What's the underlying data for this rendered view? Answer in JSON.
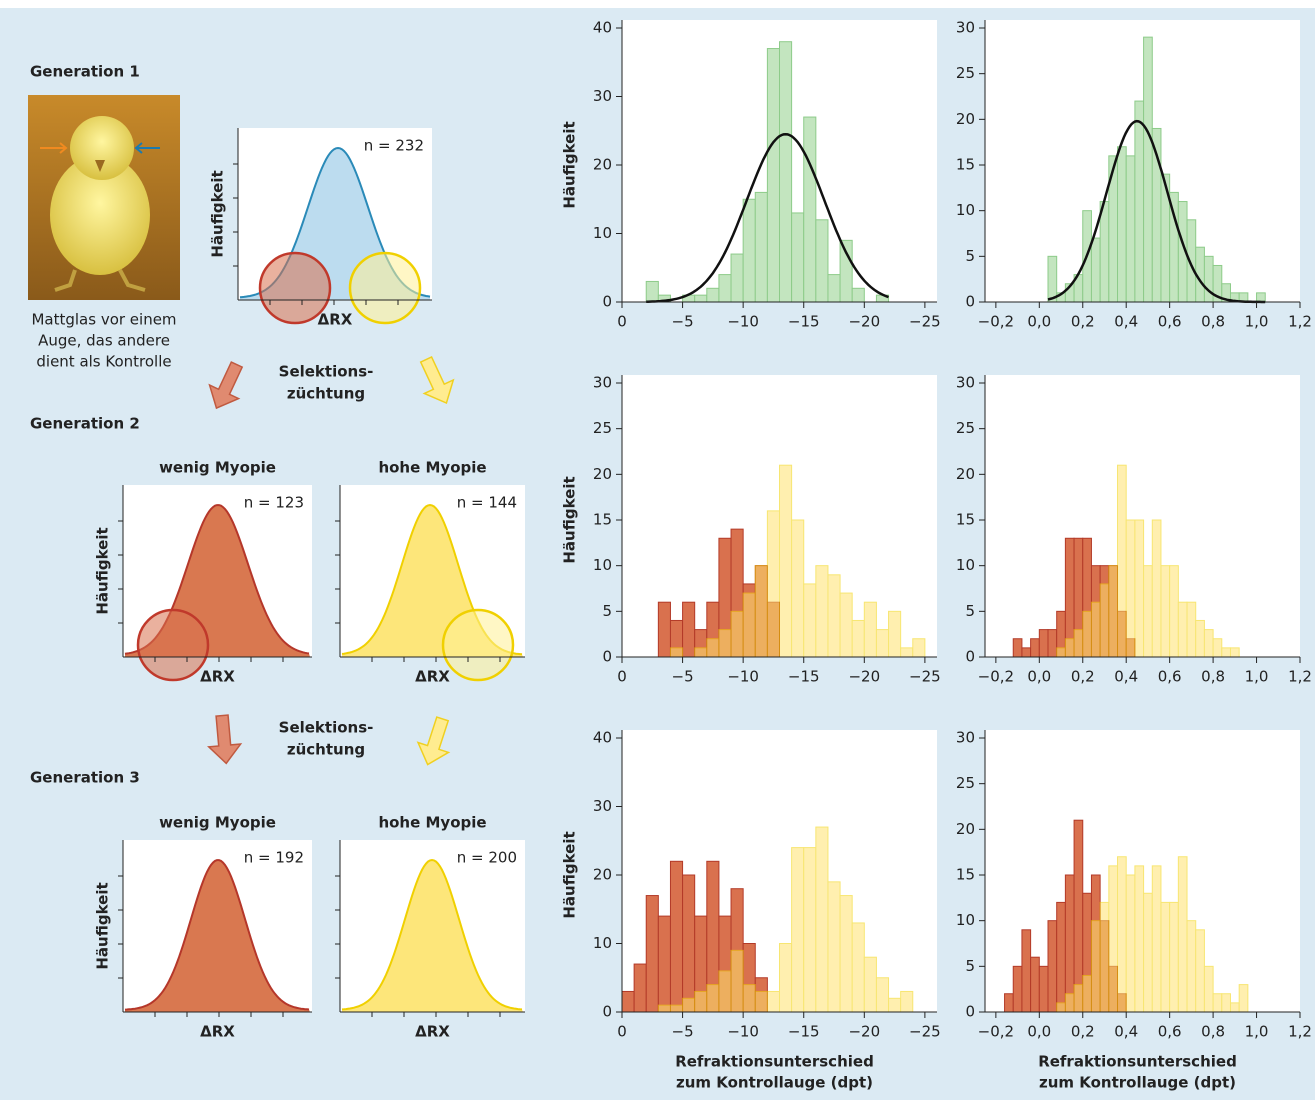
{
  "schematic": {
    "generations": [
      "Generation 1",
      "Generation 2",
      "Generation 3"
    ],
    "photo_caption": [
      "Mattglas vor einem",
      "Auge, das andere",
      "dient als Kontrolle"
    ],
    "selection": [
      [
        "Selektions-",
        "züchtung"
      ],
      [
        "Selektions-",
        "züchtung"
      ]
    ],
    "panels": [
      {
        "ylabel": "Häufigkeit",
        "xlabel": "ΔRX",
        "n": "n = 232"
      },
      {
        "title": "wenig Myopie",
        "ylabel": "Häufigkeit",
        "xlabel": "ΔRX",
        "n": "n = 123"
      },
      {
        "title": "hohe Myopie",
        "xlabel": "ΔRX",
        "n": "n = 144"
      },
      {
        "title": "wenig Myopie",
        "ylabel": "Häufigkeit",
        "xlabel": "ΔRX",
        "n": "n = 192"
      },
      {
        "title": "hohe Myopie",
        "xlabel": "ΔRX",
        "n": "n = 200"
      }
    ]
  },
  "chart_data": [
    {
      "type": "histogram",
      "ylabel": "Häufigkeit",
      "xlim": [
        0,
        -26
      ],
      "ylim": [
        0,
        40
      ],
      "yticks": [
        0,
        10,
        20,
        30,
        40
      ],
      "xticks": [
        0,
        {
          "value": -5,
          "label": "−5"
        },
        {
          "value": -10,
          "label": "−10"
        },
        {
          "value": -15,
          "label": "−15"
        },
        {
          "value": -20,
          "label": "−20"
        },
        {
          "value": -25,
          "label": "−25"
        }
      ],
      "series": [
        {
          "color": "#c3e5bf",
          "edgecolor": "#8dcb89",
          "alpha": 1,
          "bins": [
            -2,
            -3,
            -4,
            -5,
            -6,
            -7,
            -8,
            -9,
            -10,
            -11,
            -12,
            -13,
            -14,
            -15,
            -16,
            -17,
            -18,
            -19,
            -20,
            -21,
            -22
          ],
          "values": [
            3,
            1,
            0,
            1,
            1,
            2,
            4,
            7,
            15,
            16,
            37,
            38,
            13,
            27,
            12,
            4,
            9,
            2,
            0,
            1
          ]
        }
      ],
      "fit": {
        "mean": -13.5,
        "sd": 3.2,
        "peak": 24.5,
        "color": "#111111"
      }
    },
    {
      "type": "histogram",
      "xlim": [
        -0.25,
        1.2
      ],
      "ylim": [
        0,
        30
      ],
      "yticks": [
        0,
        5,
        10,
        15,
        20,
        25,
        30
      ],
      "xticks": [
        {
          "value": -0.2,
          "label": "−0,2"
        },
        {
          "value": 0,
          "label": "0,0"
        },
        {
          "value": 0.2,
          "label": "0,2"
        },
        {
          "value": 0.4,
          "label": "0,4"
        },
        {
          "value": 0.6,
          "label": "0,6"
        },
        {
          "value": 0.8,
          "label": "0,8"
        },
        {
          "value": 1.0,
          "label": "1,0"
        },
        {
          "value": 1.2,
          "label": "1,2"
        }
      ],
      "series": [
        {
          "color": "#c3e5bf",
          "edgecolor": "#8dcb89",
          "alpha": 1,
          "bins": [
            0.04,
            0.08,
            0.12,
            0.16,
            0.2,
            0.24,
            0.28,
            0.32,
            0.36,
            0.4,
            0.44,
            0.48,
            0.52,
            0.56,
            0.6,
            0.64,
            0.68,
            0.72,
            0.76,
            0.8,
            0.84,
            0.88,
            0.92,
            0.96,
            1.0,
            1.04
          ],
          "values": [
            5,
            1,
            2,
            3,
            10,
            7,
            11,
            16,
            17,
            16,
            22,
            29,
            19,
            14,
            12,
            11,
            9,
            6,
            5,
            4,
            2,
            1,
            1,
            0,
            1
          ]
        }
      ],
      "fit": {
        "mean": 0.45,
        "sd": 0.14,
        "peak": 19.8,
        "color": "#111111"
      }
    },
    {
      "type": "histogram",
      "ylabel": "Häufigkeit",
      "xlim": [
        0,
        -26
      ],
      "ylim": [
        0,
        30
      ],
      "yticks": [
        0,
        5,
        10,
        15,
        20,
        25,
        30
      ],
      "xticks": [
        0,
        {
          "value": -5,
          "label": "−5"
        },
        {
          "value": -10,
          "label": "−10"
        },
        {
          "value": -15,
          "label": "−15"
        },
        {
          "value": -20,
          "label": "−20"
        },
        {
          "value": -25,
          "label": "−25"
        }
      ],
      "series": [
        {
          "color": "#d9714e",
          "edgecolor": "#b33a28",
          "alpha": 1,
          "bins": [
            -3,
            -4,
            -5,
            -6,
            -7,
            -8,
            -9,
            -10,
            -11,
            -12,
            -13
          ],
          "values": [
            6,
            4,
            6,
            3,
            6,
            13,
            14,
            8,
            10,
            6
          ]
        },
        {
          "color": "#ffe36e",
          "edgecolor": "#f2d200",
          "alpha": 0.55,
          "bins": [
            -4,
            -5,
            -6,
            -7,
            -8,
            -9,
            -10,
            -11,
            -12,
            -13,
            -14,
            -15,
            -16,
            -17,
            -18,
            -19,
            -20,
            -21,
            -22,
            -23,
            -24,
            -25
          ],
          "values": [
            1,
            0,
            1,
            2,
            3,
            5,
            7,
            10,
            16,
            21,
            15,
            8,
            10,
            9,
            7,
            4,
            6,
            3,
            5,
            1,
            2
          ]
        }
      ]
    },
    {
      "type": "histogram",
      "xlim": [
        -0.25,
        1.2
      ],
      "ylim": [
        0,
        30
      ],
      "yticks": [
        0,
        5,
        10,
        15,
        20,
        25,
        30
      ],
      "xticks": [
        {
          "value": -0.2,
          "label": "−0,2"
        },
        {
          "value": 0,
          "label": "0,0"
        },
        {
          "value": 0.2,
          "label": "0,2"
        },
        {
          "value": 0.4,
          "label": "0,4"
        },
        {
          "value": 0.6,
          "label": "0,6"
        },
        {
          "value": 0.8,
          "label": "0,8"
        },
        {
          "value": 1.0,
          "label": "1,0"
        },
        {
          "value": 1.2,
          "label": "1,2"
        }
      ],
      "series": [
        {
          "color": "#d9714e",
          "edgecolor": "#b33a28",
          "alpha": 1,
          "bins": [
            -0.12,
            -0.08,
            -0.04,
            0.0,
            0.04,
            0.08,
            0.12,
            0.16,
            0.2,
            0.24,
            0.28,
            0.32,
            0.36,
            0.4,
            0.44
          ],
          "values": [
            2,
            1,
            2,
            3,
            3,
            5,
            13,
            13,
            13,
            10,
            10,
            10,
            5,
            2
          ]
        },
        {
          "color": "#ffe36e",
          "edgecolor": "#f2d200",
          "alpha": 0.55,
          "bins": [
            0.08,
            0.12,
            0.16,
            0.2,
            0.24,
            0.28,
            0.32,
            0.36,
            0.4,
            0.44,
            0.48,
            0.52,
            0.56,
            0.6,
            0.64,
            0.68,
            0.72,
            0.76,
            0.8,
            0.84,
            0.88,
            0.92
          ],
          "values": [
            1,
            2,
            3,
            5,
            6,
            8,
            10,
            21,
            15,
            15,
            10,
            15,
            10,
            10,
            6,
            6,
            4,
            3,
            2,
            1,
            1
          ]
        }
      ]
    },
    {
      "type": "histogram",
      "ylabel": "Häufigkeit",
      "xlabel": [
        "Refraktionsunterschied",
        "zum Kontrollauge (dpt)"
      ],
      "xlim": [
        0,
        -26
      ],
      "ylim": [
        0,
        40
      ],
      "yticks": [
        0,
        10,
        20,
        30,
        40
      ],
      "xticks": [
        0,
        {
          "value": -5,
          "label": "−5"
        },
        {
          "value": -10,
          "label": "−10"
        },
        {
          "value": -15,
          "label": "−15"
        },
        {
          "value": -20,
          "label": "−20"
        },
        {
          "value": -25,
          "label": "−25"
        }
      ],
      "series": [
        {
          "color": "#d9714e",
          "edgecolor": "#b33a28",
          "alpha": 1,
          "bins": [
            0,
            -1,
            -2,
            -3,
            -4,
            -5,
            -6,
            -7,
            -8,
            -9,
            -10,
            -11,
            -12
          ],
          "values": [
            3,
            7,
            17,
            14,
            22,
            20,
            14,
            22,
            14,
            18,
            10,
            5
          ]
        },
        {
          "color": "#ffe36e",
          "edgecolor": "#f2d200",
          "alpha": 0.55,
          "bins": [
            -3,
            -4,
            -5,
            -6,
            -7,
            -8,
            -9,
            -10,
            -11,
            -12,
            -13,
            -14,
            -15,
            -16,
            -17,
            -18,
            -19,
            -20,
            -21,
            -22,
            -23,
            -24
          ],
          "values": [
            1,
            1,
            2,
            3,
            4,
            6,
            9,
            4,
            3,
            3,
            10,
            24,
            24,
            27,
            19,
            17,
            13,
            8,
            5,
            2,
            3
          ]
        }
      ]
    },
    {
      "type": "histogram",
      "xlabel": [
        "Refraktionsunterschied",
        "zum Kontrollauge (dpt)"
      ],
      "xlim": [
        -0.25,
        1.2
      ],
      "ylim": [
        0,
        30
      ],
      "yticks": [
        0,
        5,
        10,
        15,
        20,
        25,
        30
      ],
      "xticks": [
        {
          "value": -0.2,
          "label": "−0,2"
        },
        {
          "value": 0,
          "label": "0,0"
        },
        {
          "value": 0.2,
          "label": "0,2"
        },
        {
          "value": 0.4,
          "label": "0,4"
        },
        {
          "value": 0.6,
          "label": "0,6"
        },
        {
          "value": 0.8,
          "label": "0,8"
        },
        {
          "value": 1.0,
          "label": "1,0"
        },
        {
          "value": 1.2,
          "label": "1,2"
        }
      ],
      "series": [
        {
          "color": "#d9714e",
          "edgecolor": "#b33a28",
          "alpha": 1,
          "bins": [
            -0.16,
            -0.12,
            -0.08,
            -0.04,
            0.0,
            0.04,
            0.08,
            0.12,
            0.16,
            0.2,
            0.24,
            0.28,
            0.32,
            0.36,
            0.4
          ],
          "values": [
            2,
            5,
            9,
            6,
            5,
            10,
            12,
            15,
            21,
            13,
            15,
            10,
            5,
            2
          ]
        },
        {
          "color": "#ffe36e",
          "edgecolor": "#f2d200",
          "alpha": 0.55,
          "bins": [
            0.08,
            0.12,
            0.16,
            0.2,
            0.24,
            0.28,
            0.32,
            0.36,
            0.4,
            0.44,
            0.48,
            0.52,
            0.56,
            0.6,
            0.64,
            0.68,
            0.72,
            0.76,
            0.8,
            0.84,
            0.88,
            0.92,
            0.96
          ],
          "values": [
            1,
            2,
            3,
            4,
            10,
            12,
            16,
            17,
            15,
            16,
            13,
            16,
            12,
            12,
            17,
            10,
            9,
            5,
            2,
            2,
            1,
            3
          ]
        }
      ]
    }
  ]
}
